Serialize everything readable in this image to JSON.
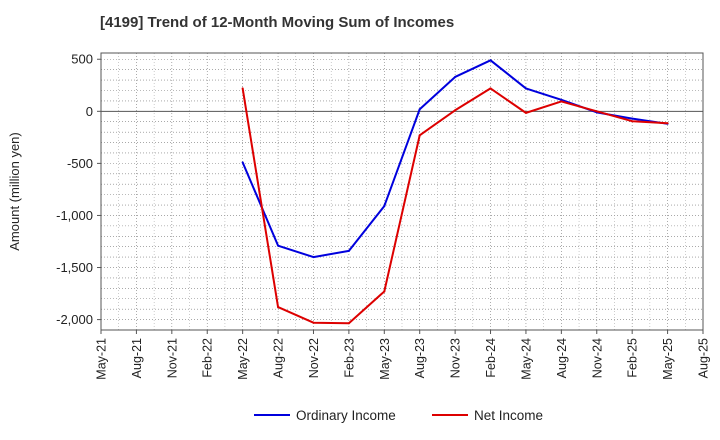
{
  "chart_data": {
    "type": "line",
    "title": "[4199]  Trend of 12-Month Moving Sum of Incomes",
    "xlabel": "",
    "ylabel": "Amount (million yen)",
    "ylim": [
      -2100,
      560
    ],
    "yticks": [
      500,
      0,
      -500,
      -1000,
      -1500,
      -2000
    ],
    "ytick_labels": [
      "500",
      "0",
      "-500",
      "-1,000",
      "-1,500",
      "-2,000"
    ],
    "x_tick_labels": [
      "May-21",
      "Aug-21",
      "Nov-21",
      "Feb-22",
      "May-22",
      "Aug-22",
      "Nov-22",
      "Feb-23",
      "May-23",
      "Aug-23",
      "Nov-23",
      "Feb-24",
      "May-24",
      "Aug-24",
      "Nov-24",
      "Feb-25",
      "May-25",
      "Aug-25"
    ],
    "grid": true,
    "legend_position": "bottom",
    "series": [
      {
        "name": "Ordinary Income",
        "color": "#0000dd",
        "start_index": 4,
        "values": [
          -490,
          -1290,
          -1400,
          -1340,
          -910,
          20,
          330,
          490,
          220,
          110,
          -10,
          -70,
          -120
        ]
      },
      {
        "name": "Net Income",
        "color": "#dd0000",
        "start_index": 4,
        "values": [
          220,
          -1880,
          -2030,
          -2035,
          -1730,
          -230,
          10,
          220,
          -15,
          95,
          0,
          -95,
          -115
        ]
      }
    ]
  }
}
